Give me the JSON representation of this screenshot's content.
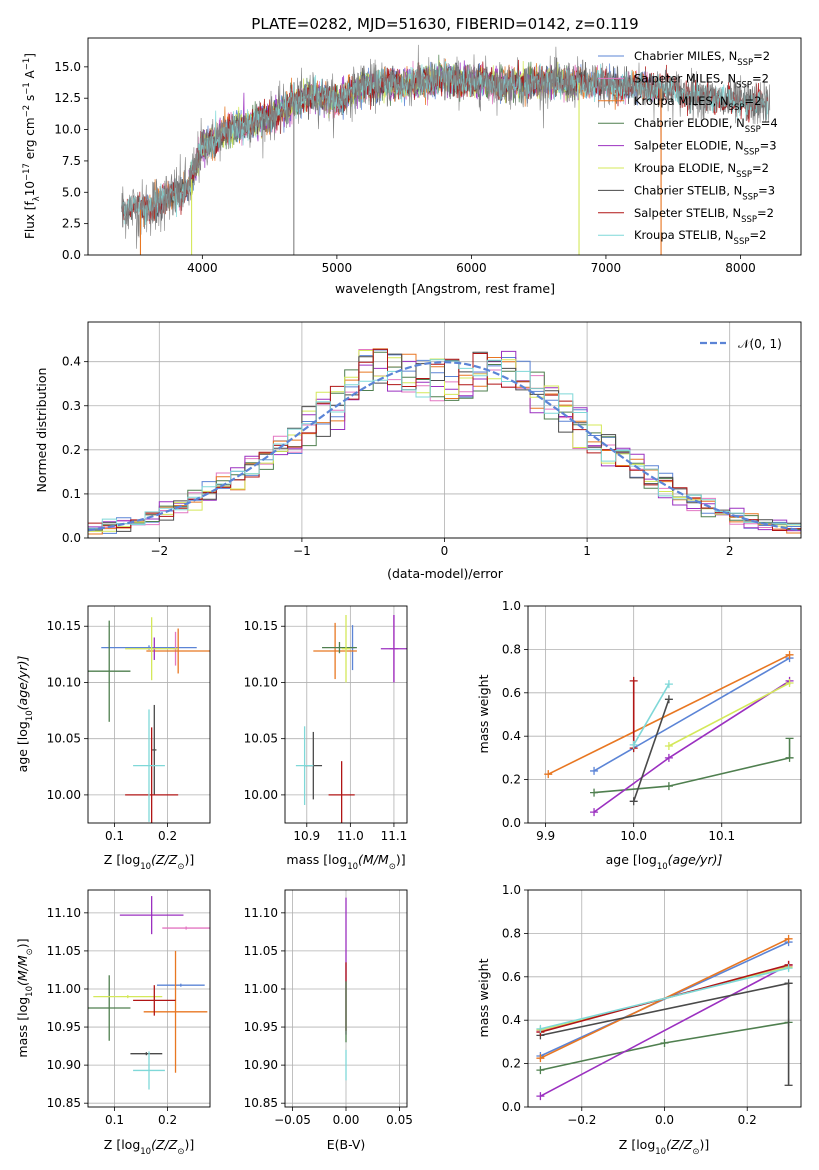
{
  "colors": {
    "chabrier_miles": "#5b84d6",
    "salpeter_miles": "#e377c2",
    "kroupa_miles": "#e87722",
    "chabrier_elodie": "#4f7f4f",
    "salpeter_elodie": "#9b30c0",
    "kroupa_elodie": "#d4e85a",
    "chabrier_stelib": "#4a4a4a",
    "salpeter_stelib": "#b01515",
    "kroupa_stelib": "#7fd8d8",
    "data": "#808080",
    "normal": "#5b84d6"
  },
  "chart_data": [
    {
      "id": "spectrum",
      "type": "line",
      "title": "PLATE=0282, MJD=51630, FIBERID=0142, z=0.119",
      "xlabel": "wavelength [Angstrom, rest frame]",
      "ylabel": "Flux [f",
      "ylabel_parts": [
        "Flux [f",
        "λ",
        "10",
        "−17",
        " erg cm",
        "−2",
        " s",
        "−1",
        " A",
        "−1",
        "]"
      ],
      "xlim": [
        3150,
        8450
      ],
      "ylim": [
        0,
        17.3
      ],
      "xticks": [
        4000,
        5000,
        6000,
        7000,
        8000
      ],
      "yticks": [
        0.0,
        2.5,
        5.0,
        7.5,
        10.0,
        12.5,
        15.0
      ],
      "ytick_labels": [
        "0.0",
        "2.5",
        "5.0",
        "7.5",
        "10.0",
        "12.5",
        "15.0"
      ],
      "continuum_knots": [
        [
          3400,
          3.8
        ],
        [
          3550,
          3.6
        ],
        [
          3700,
          4.3
        ],
        [
          3900,
          5.4
        ],
        [
          4000,
          8.6
        ],
        [
          4200,
          10.0
        ],
        [
          4500,
          11.0
        ],
        [
          4800,
          12.8
        ],
        [
          5000,
          12.3
        ],
        [
          5200,
          13.5
        ],
        [
          5500,
          13.7
        ],
        [
          5800,
          14.0
        ],
        [
          6000,
          13.8
        ],
        [
          6300,
          13.6
        ],
        [
          6700,
          13.8
        ],
        [
          7000,
          13.6
        ],
        [
          7400,
          13.3
        ],
        [
          7800,
          12.4
        ],
        [
          8200,
          12.0
        ]
      ],
      "legend_position": "top-right",
      "legend": [
        {
          "key": "chabrier_miles",
          "label": "Chabrier MILES, N",
          "sub": "SSP",
          "eq": "=2"
        },
        {
          "key": "salpeter_miles",
          "label": "Salpeter MILES, N",
          "sub": "SSP",
          "eq": "=2"
        },
        {
          "key": "kroupa_miles",
          "label": "Kroupa MILES, N",
          "sub": "SSP",
          "eq": "=2"
        },
        {
          "key": "chabrier_elodie",
          "label": "Chabrier ELODIE, N",
          "sub": "SSP",
          "eq": "=4"
        },
        {
          "key": "salpeter_elodie",
          "label": "Salpeter ELODIE, N",
          "sub": "SSP",
          "eq": "=3"
        },
        {
          "key": "kroupa_elodie",
          "label": "Kroupa ELODIE, N",
          "sub": "SSP",
          "eq": "=2"
        },
        {
          "key": "chabrier_stelib",
          "label": "Chabrier STELIB, N",
          "sub": "SSP",
          "eq": "=3"
        },
        {
          "key": "salpeter_stelib",
          "label": "Salpeter STELIB, N",
          "sub": "SSP",
          "eq": "=2"
        },
        {
          "key": "kroupa_stelib",
          "label": "Kroupa STELIB, N",
          "sub": "SSP",
          "eq": "=2"
        }
      ]
    },
    {
      "id": "residuals",
      "type": "histogram",
      "xlabel": "(data-model)/error",
      "ylabel": "Normed distribution",
      "xlim": [
        -2.5,
        2.5
      ],
      "ylim": [
        0,
        0.49
      ],
      "xticks": [
        -2,
        -1,
        0,
        1,
        2
      ],
      "xtick_labels": [
        "−2",
        "−1",
        "0",
        "1",
        "2"
      ],
      "yticks": [
        0.0,
        0.1,
        0.2,
        0.3,
        0.4
      ],
      "ytick_labels": [
        "0.0",
        "0.1",
        "0.2",
        "0.3",
        "0.4"
      ],
      "legend_label": "𝒩(0, 1)",
      "legend_position": "top-right",
      "bin_width": 0.1,
      "bin_start": -2.5,
      "series_keys": [
        "chabrier_miles",
        "salpeter_miles",
        "kroupa_miles",
        "chabrier_elodie",
        "salpeter_elodie",
        "kroupa_elodie",
        "chabrier_stelib",
        "salpeter_stelib",
        "kroupa_stelib"
      ]
    },
    {
      "id": "age_vs_Z",
      "type": "errorbar",
      "xlabel": "Z [log",
      "xlabel_parts": [
        "Z [log",
        "10",
        "(Z/Z",
        "⊙",
        ")]"
      ],
      "ylabel_parts": [
        "age  [log",
        "10",
        "(age/yr)]"
      ],
      "xlim": [
        0.05,
        0.28
      ],
      "ylim": [
        9.975,
        10.168
      ],
      "xticks": [
        0.1,
        0.2
      ],
      "xtick_labels": [
        "0.1",
        "0.2"
      ],
      "yticks": [
        10.0,
        10.05,
        10.1,
        10.15
      ],
      "ytick_labels": [
        "10.00",
        "10.05",
        "10.10",
        "10.15"
      ],
      "points": [
        {
          "key": "chabrier_miles",
          "x": 0.165,
          "y": 10.131,
          "xerr": 0.09,
          "yerr": 0.002
        },
        {
          "key": "salpeter_miles",
          "x": 0.215,
          "y": 10.13,
          "xerr": 0.005,
          "yerr": 0.015
        },
        {
          "key": "kroupa_miles",
          "x": 0.22,
          "y": 10.128,
          "xerr": 0.06,
          "yerr": 0.02
        },
        {
          "key": "chabrier_elodie",
          "x": 0.09,
          "y": 10.11,
          "xerr": 0.04,
          "yerr": 0.045
        },
        {
          "key": "salpeter_elodie",
          "x": 0.175,
          "y": 10.13,
          "xerr": 0.002,
          "yerr": 0.01
        },
        {
          "key": "kroupa_elodie",
          "x": 0.17,
          "y": 10.13,
          "xerr": 0.05,
          "yerr": 0.028
        },
        {
          "key": "chabrier_stelib",
          "x": 0.175,
          "y": 10.04,
          "xerr": 0.004,
          "yerr": 0.04
        },
        {
          "key": "salpeter_stelib",
          "x": 0.17,
          "y": 10.0,
          "xerr": 0.05,
          "yerr": 0.06
        },
        {
          "key": "kroupa_stelib",
          "x": 0.165,
          "y": 10.026,
          "xerr": 0.03,
          "yerr": 0.05
        }
      ]
    },
    {
      "id": "age_vs_mass",
      "type": "errorbar",
      "xlabel_parts": [
        "mass [log",
        "10",
        "(M/M",
        "⊙",
        ")]"
      ],
      "xlim": [
        10.85,
        11.13
      ],
      "ylim": [
        9.975,
        10.168
      ],
      "xticks": [
        10.9,
        11.0,
        11.1
      ],
      "xtick_labels": [
        "10.9",
        "11.0",
        "11.1"
      ],
      "yticks": [
        10.0,
        10.05,
        10.1,
        10.15
      ],
      "ytick_labels": [
        "10.00",
        "10.05",
        "10.10",
        "10.15"
      ],
      "points": [
        {
          "key": "chabrier_miles",
          "x": 11.005,
          "y": 10.131,
          "xerr": 0.005,
          "yerr": 0.02
        },
        {
          "key": "salpeter_miles",
          "x": 11.1,
          "y": 10.13,
          "xerr": 0.01,
          "yerr": 0.03
        },
        {
          "key": "kroupa_miles",
          "x": 10.965,
          "y": 10.128,
          "xerr": 0.05,
          "yerr": 0.025
        },
        {
          "key": "chabrier_elodie",
          "x": 10.975,
          "y": 10.131,
          "xerr": 0.04,
          "yerr": 0.005
        },
        {
          "key": "salpeter_elodie",
          "x": 11.1,
          "y": 10.13,
          "xerr": 0.03,
          "yerr": 0.03
        },
        {
          "key": "kroupa_elodie",
          "x": 10.99,
          "y": 10.13,
          "xerr": 0.01,
          "yerr": 0.03
        },
        {
          "key": "chabrier_stelib",
          "x": 10.915,
          "y": 10.026,
          "xerr": 0.02,
          "yerr": 0.03
        },
        {
          "key": "salpeter_stelib",
          "x": 10.98,
          "y": 10.0,
          "xerr": 0.03,
          "yerr": 0.03
        },
        {
          "key": "kroupa_stelib",
          "x": 10.895,
          "y": 10.026,
          "xerr": 0.02,
          "yerr": 0.035
        }
      ]
    },
    {
      "id": "weight_vs_age",
      "type": "line",
      "xlabel_parts": [
        "age  [log",
        "10",
        "(age/yr)]"
      ],
      "ylabel": "mass weight",
      "xlim": [
        9.88,
        10.19
      ],
      "ylim": [
        0,
        1
      ],
      "xticks": [
        9.9,
        10.0,
        10.1
      ],
      "xtick_labels": [
        "9.9",
        "10.0",
        "10.1"
      ],
      "yticks": [
        0.0,
        0.2,
        0.4,
        0.6,
        0.8,
        1.0
      ],
      "ytick_labels": [
        "0.0",
        "0.2",
        "0.4",
        "0.6",
        "0.8",
        "1.0"
      ],
      "series": [
        {
          "key": "chabrier_miles",
          "x": [
            9.955,
            10.177
          ],
          "y": [
            0.24,
            0.76
          ]
        },
        {
          "key": "kroupa_miles",
          "x": [
            9.903,
            10.177
          ],
          "y": [
            0.225,
            0.775
          ]
        },
        {
          "key": "chabrier_elodie",
          "x": [
            9.955,
            10.04,
            10.177
          ],
          "y": [
            0.14,
            0.17,
            0.3
          ],
          "vbar": {
            "x": 10.177,
            "y": [
              0.3,
              0.39
            ]
          }
        },
        {
          "key": "salpeter_elodie",
          "x": [
            9.955,
            10.04,
            10.177
          ],
          "y": [
            0.05,
            0.3,
            0.655
          ]
        },
        {
          "key": "kroupa_elodie",
          "x": [
            10.04,
            10.177
          ],
          "y": [
            0.355,
            0.645
          ]
        },
        {
          "key": "chabrier_stelib",
          "x": [
            10.0,
            10.04
          ],
          "y": [
            0.1,
            0.57
          ]
        },
        {
          "key": "salpeter_stelib",
          "x": [
            10.0,
            10.0
          ],
          "y": [
            0.345,
            0.655
          ]
        },
        {
          "key": "kroupa_stelib",
          "x": [
            10.0,
            10.04
          ],
          "y": [
            0.36,
            0.64
          ]
        }
      ]
    },
    {
      "id": "mass_vs_Z",
      "type": "errorbar",
      "xlabel_parts": [
        "Z [log",
        "10",
        "(Z/Z",
        "⊙",
        ")]"
      ],
      "ylabel_parts": [
        "mass [log",
        "10",
        "(M/M",
        "⊙",
        ")]"
      ],
      "xlim": [
        0.05,
        0.28
      ],
      "ylim": [
        10.845,
        11.13
      ],
      "xticks": [
        0.1,
        0.2
      ],
      "xtick_labels": [
        "0.1",
        "0.2"
      ],
      "yticks": [
        10.85,
        10.9,
        10.95,
        11.0,
        11.05,
        11.1
      ],
      "ytick_labels": [
        "10.85",
        "10.90",
        "10.95",
        "11.00",
        "11.05",
        "11.10"
      ],
      "points": [
        {
          "key": "chabrier_miles",
          "x": 0.225,
          "y": 11.005,
          "xerr": 0.045,
          "yerr": 0.002
        },
        {
          "key": "salpeter_miles",
          "x": 0.235,
          "y": 11.08,
          "xerr": 0.045,
          "yerr": 0.002
        },
        {
          "key": "kroupa_miles",
          "x": 0.215,
          "y": 10.97,
          "xerr": 0.06,
          "yerr": 0.08
        },
        {
          "key": "chabrier_elodie",
          "x": 0.09,
          "y": 10.975,
          "xerr": 0.04,
          "yerr": 0.043
        },
        {
          "key": "salpeter_elodie",
          "x": 0.17,
          "y": 11.097,
          "xerr": 0.06,
          "yerr": 0.025
        },
        {
          "key": "kroupa_elodie",
          "x": 0.125,
          "y": 10.99,
          "xerr": 0.065,
          "yerr": 0.002
        },
        {
          "key": "chabrier_stelib",
          "x": 0.16,
          "y": 10.915,
          "xerr": 0.03,
          "yerr": 0.002
        },
        {
          "key": "salpeter_stelib",
          "x": 0.175,
          "y": 10.985,
          "xerr": 0.04,
          "yerr": 0.02
        },
        {
          "key": "kroupa_stelib",
          "x": 0.165,
          "y": 10.893,
          "xerr": 0.03,
          "yerr": 0.025
        }
      ]
    },
    {
      "id": "mass_vs_ebv",
      "type": "errorbar",
      "xlabel": "E(B-V)",
      "xlim": [
        -0.057,
        0.057
      ],
      "ylim": [
        10.845,
        11.13
      ],
      "xticks": [
        -0.05,
        0.0,
        0.05
      ],
      "xtick_labels": [
        "−0.05",
        "0.00",
        "0.05"
      ],
      "yticks": [
        10.85,
        10.9,
        10.95,
        11.0,
        11.05,
        11.1
      ],
      "ytick_labels": [
        "10.85",
        "10.90",
        "10.95",
        "11.00",
        "11.05",
        "11.10"
      ],
      "points": [
        {
          "key": "salpeter_elodie",
          "x": 0.0,
          "y": 11.03,
          "xerr": 0.0,
          "yerr": 0.09
        },
        {
          "key": "salpeter_stelib",
          "x": 0.0,
          "y": 10.99,
          "xerr": 0.0,
          "yerr": 0.045
        },
        {
          "key": "chabrier_elodie",
          "x": 0.0,
          "y": 10.97,
          "xerr": 0.0,
          "yerr": 0.04
        },
        {
          "key": "kroupa_stelib",
          "x": 0.0,
          "y": 10.9,
          "xerr": 0.0,
          "yerr": 0.02
        }
      ]
    },
    {
      "id": "weight_vs_Z",
      "type": "line",
      "xlabel_parts": [
        "Z [log",
        "10",
        "(Z/Z",
        "⊙",
        ")]"
      ],
      "ylabel": "mass weight",
      "xlim": [
        -0.33,
        0.33
      ],
      "ylim": [
        0,
        1
      ],
      "xticks": [
        -0.2,
        0.0,
        0.2
      ],
      "xtick_labels": [
        "−0.2",
        "0.0",
        "0.2"
      ],
      "yticks": [
        0.0,
        0.2,
        0.4,
        0.6,
        0.8,
        1.0
      ],
      "ytick_labels": [
        "0.0",
        "0.2",
        "0.4",
        "0.6",
        "0.8",
        "1.0"
      ],
      "series": [
        {
          "key": "chabrier_miles",
          "x": [
            -0.3,
            0.3
          ],
          "y": [
            0.235,
            0.76
          ]
        },
        {
          "key": "kroupa_miles",
          "x": [
            -0.3,
            0.3
          ],
          "y": [
            0.225,
            0.775
          ]
        },
        {
          "key": "salpeter_miles",
          "x": [
            -0.3,
            0.3
          ],
          "y": [
            0.35,
            0.65
          ]
        },
        {
          "key": "chabrier_elodie",
          "x": [
            -0.3,
            0.0,
            0.3
          ],
          "y": [
            0.17,
            0.295,
            0.39
          ]
        },
        {
          "key": "salpeter_elodie",
          "x": [
            -0.3,
            0.3
          ],
          "y": [
            0.05,
            0.655
          ]
        },
        {
          "key": "kroupa_elodie",
          "x": [
            -0.3,
            0.3
          ],
          "y": [
            0.355,
            0.645
          ]
        },
        {
          "key": "chabrier_stelib",
          "x": [
            -0.3,
            0.3
          ],
          "y": [
            0.33,
            0.57
          ],
          "vbar": {
            "x": 0.3,
            "y": [
              0.1,
              0.57
            ]
          }
        },
        {
          "key": "salpeter_stelib",
          "x": [
            -0.3,
            0.3
          ],
          "y": [
            0.345,
            0.655
          ]
        },
        {
          "key": "kroupa_stelib",
          "x": [
            -0.3,
            0.3
          ],
          "y": [
            0.36,
            0.64
          ]
        }
      ]
    }
  ]
}
